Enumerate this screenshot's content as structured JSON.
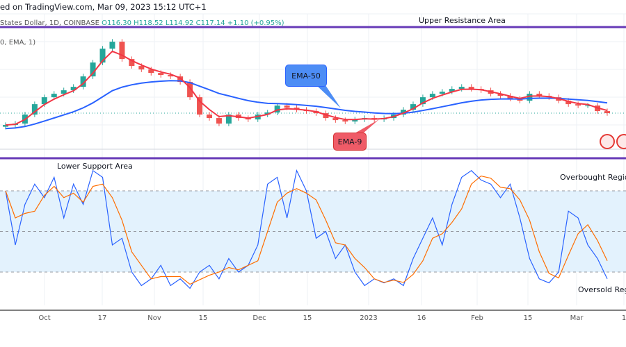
{
  "header": {
    "text": "ed on TradingView.com, Mar 09, 2023 15:12 UTC+1"
  },
  "legend": {
    "symbol": "States Dollar, 1D, COINBASE",
    "open": "O116.30",
    "high": "H118.52",
    "low": "L114.92",
    "close": "C117.14",
    "change": "+1.10 (+0.95%)",
    "indicator": "0, EMA, 1)"
  },
  "annotations": {
    "upper": "Upper Resistance Area",
    "lower": "Lower Support Area",
    "overbought": "Overbought Regio",
    "oversold": "Oversold Regi",
    "ema50": "EMA-50",
    "ema9": "EMA-9"
  },
  "colors": {
    "up": "#26a69a",
    "down": "#ef5350",
    "ema9": "#f23645",
    "ema50": "#2962ff",
    "stoch_k": "#2962ff",
    "stoch_d": "#ff6d00",
    "resistance_line": "#673ab7",
    "band": "#e3f2fd"
  },
  "chart_data": [
    {
      "type": "candlestick",
      "title": "",
      "x_ticks": [
        "Oct",
        "17",
        "Nov",
        "15",
        "Dec",
        "15",
        "2023",
        "16",
        "Feb",
        "15",
        "Mar",
        "1"
      ],
      "close": [
        110.3,
        111.1,
        116.3,
        122.3,
        126.3,
        128.3,
        130.3,
        132.3,
        138.3,
        146.3,
        154.3,
        158.3,
        148.3,
        144.3,
        142.3,
        140.3,
        139.1,
        138.3,
        135.1,
        126.3,
        116.3,
        114.3,
        111.1,
        116.3,
        114.3,
        113.5,
        116.3,
        117.5,
        121.5,
        120.3,
        119.1,
        118.3,
        117.1,
        114.3,
        113.1,
        112.3,
        113.5,
        114.3,
        113.5,
        114.3,
        116.3,
        119.1,
        122.3,
        126.3,
        128.3,
        129.5,
        131.1,
        132.3,
        131.1,
        130.3,
        128.3,
        127.1,
        125.5,
        124.3,
        128.3,
        127.1,
        126.3,
        124.3,
        122.3,
        121.5,
        121.5,
        118.3,
        117.14
      ],
      "overlays": [
        "EMA-9",
        "EMA-50"
      ]
    },
    {
      "type": "line",
      "title": "",
      "ylim": [
        0,
        100
      ],
      "levels": [
        80,
        50,
        20
      ],
      "k": [
        80,
        40,
        70,
        85,
        75,
        90,
        60,
        85,
        70,
        95,
        90,
        40,
        45,
        20,
        10,
        15,
        25,
        10,
        15,
        8,
        20,
        25,
        15,
        30,
        20,
        25,
        40,
        85,
        90,
        60,
        95,
        80,
        45,
        50,
        30,
        40,
        20,
        10,
        15,
        12,
        15,
        10,
        30,
        45,
        60,
        40,
        70,
        90,
        95,
        88,
        85,
        75,
        85,
        60,
        30,
        15,
        12,
        20,
        65,
        60,
        40,
        30,
        15
      ]
    }
  ]
}
